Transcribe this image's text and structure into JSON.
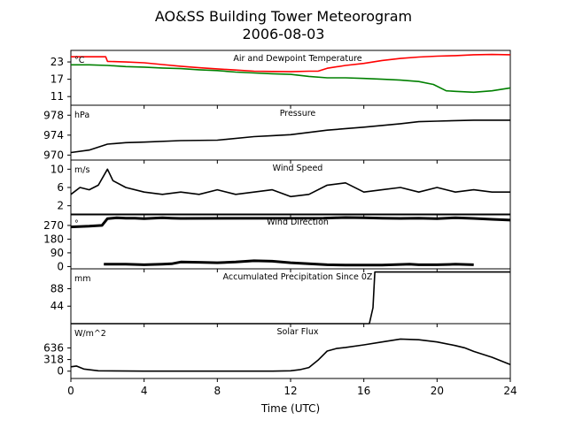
{
  "chart_data": {
    "type": "line",
    "title": "AO&SS Building Tower Meteorogram",
    "subtitle": "2006-08-03",
    "xlabel": "Time (UTC)",
    "xlim": [
      0,
      24
    ],
    "xticks": [
      0,
      4,
      8,
      12,
      16,
      20,
      24
    ],
    "colors": {
      "temperature": "#ff0000",
      "dewpoint": "#008000",
      "default": "#000000"
    },
    "panels": [
      {
        "id": "temperature",
        "title": "Air and Dewpoint Temperature",
        "unit": "°C",
        "ylim": [
          8,
          27
        ],
        "yticks": [
          11,
          17,
          23
        ],
        "series": [
          {
            "color": "#ff0000",
            "x": [
              0,
              1.9,
              2.0,
              3,
              4,
              5,
              6,
              7,
              8,
              9,
              10,
              11,
              12,
              13,
              13.5,
              14,
              15,
              16,
              17,
              18,
              19,
              20,
              21,
              22,
              23,
              24
            ],
            "y": [
              24.8,
              24.8,
              23.2,
              23.0,
              22.7,
              22.1,
              21.5,
              21.0,
              20.6,
              20.2,
              19.8,
              19.7,
              19.6,
              19.8,
              19.8,
              20.8,
              21.8,
              22.5,
              23.5,
              24.2,
              24.7,
              25.0,
              25.2,
              25.5,
              25.6,
              25.5
            ]
          },
          {
            "color": "#008000",
            "x": [
              0,
              1,
              2,
              3,
              4,
              5,
              6,
              7,
              8,
              9,
              10,
              11,
              12,
              13,
              14,
              15,
              16,
              17,
              18,
              19,
              19.8,
              20.5,
              21,
              22,
              23,
              24
            ],
            "y": [
              22.0,
              22.0,
              21.8,
              21.4,
              21.2,
              20.9,
              20.7,
              20.3,
              20.0,
              19.5,
              19.2,
              18.9,
              18.7,
              18.0,
              17.5,
              17.5,
              17.3,
              17.0,
              16.7,
              16.2,
              15.2,
              13.0,
              12.8,
              12.5,
              13.0,
              14.0
            ]
          }
        ]
      },
      {
        "id": "pressure",
        "title": "Pressure",
        "unit": "hPa",
        "ylim": [
          969,
          980
        ],
        "yticks": [
          970,
          974,
          978
        ],
        "series": [
          {
            "color": "#000000",
            "x": [
              0,
              1,
              2,
              3,
              4,
              6,
              8,
              10,
              11,
              12,
              14,
              16,
              18,
              19,
              20,
              22,
              24
            ],
            "y": [
              970.5,
              971.0,
              972.2,
              972.5,
              972.6,
              972.9,
              973.0,
              973.7,
              973.9,
              974.1,
              975.0,
              975.6,
              976.3,
              976.7,
              976.8,
              977.0,
              977.0
            ]
          }
        ]
      },
      {
        "id": "wind_speed",
        "title": "Wind Speed",
        "unit": "m/s",
        "ylim": [
          0,
          12
        ],
        "yticks": [
          2,
          6,
          10
        ],
        "series": [
          {
            "color": "#000000",
            "x": [
              0,
              0.5,
              1,
              1.5,
              2,
              2.3,
              3,
              4,
              5,
              6,
              7,
              8,
              9,
              10,
              11,
              12,
              13,
              14,
              15,
              16,
              17,
              18,
              19,
              20,
              21,
              22,
              23,
              24
            ],
            "y": [
              4.5,
              6.0,
              5.5,
              6.5,
              10.0,
              7.5,
              6.0,
              5.0,
              4.5,
              5.0,
              4.5,
              5.5,
              4.5,
              5.0,
              5.5,
              4.0,
              4.5,
              6.5,
              7.0,
              5.0,
              5.5,
              6.0,
              5.0,
              6.0,
              5.0,
              5.5,
              5.0,
              5.0
            ]
          }
        ]
      },
      {
        "id": "wind_direction",
        "title": "Wind Direction",
        "unit": "°",
        "ylim": [
          -15,
          345
        ],
        "yticks": [
          0,
          90,
          180,
          270
        ],
        "series": [
          {
            "color": "#000000",
            "x": [
              0,
              1,
              1.7,
              2.0,
              2.5,
              3,
              3.5,
              4,
              4.5,
              5,
              5.5,
              6.0,
              13.8,
              14.5,
              15,
              16,
              17,
              18,
              19,
              20,
              21,
              22,
              23,
              24
            ],
            "y": [
              260,
              265,
              270,
              315,
              320,
              318,
              317,
              315,
              318,
              320,
              318,
              316,
              318,
              320,
              322,
              320,
              318,
              316,
              318,
              315,
              320,
              316,
              310,
              305
            ]
          },
          {
            "color": "#000000",
            "x": [
              1.8,
              2.5,
              3,
              4,
              5,
              5.5,
              6,
              7,
              8,
              9,
              10,
              11,
              12,
              13,
              14,
              15,
              16.3,
              17,
              18.5,
              19,
              20,
              21,
              22
            ],
            "y": [
              15,
              15,
              15,
              12,
              15,
              18,
              30,
              28,
              25,
              30,
              38,
              35,
              25,
              18,
              12,
              10,
              10,
              10,
              15,
              12,
              12,
              15,
              12
            ]
          }
        ]
      },
      {
        "id": "precipitation",
        "title": "Accumulated Precipitation Since 0Z",
        "unit": "mm",
        "ylim": [
          0,
          138
        ],
        "yticks": [
          44,
          88
        ],
        "series": [
          {
            "color": "#000000",
            "x": [
              0,
              16.3,
              16.5,
              16.6,
              24
            ],
            "y": [
              0,
              0,
              40,
              130,
              130
            ]
          }
        ]
      },
      {
        "id": "solar_flux",
        "title": "Solar Flux",
        "unit": "W/m^2",
        "ylim": [
          -200,
          1300
        ],
        "yticks": [
          0,
          318,
          636
        ],
        "series": [
          {
            "color": "#000000",
            "x": [
              0,
              0.3,
              0.7,
              1.5,
              4,
              8,
              11,
              12,
              12.5,
              13,
              13.5,
              14,
              14.5,
              15,
              16,
              17,
              18,
              19,
              20,
              21,
              21.5,
              22,
              23,
              24
            ],
            "y": [
              120,
              140,
              60,
              10,
              0,
              0,
              0,
              10,
              40,
              100,
              300,
              550,
              620,
              650,
              720,
              800,
              880,
              860,
              800,
              700,
              640,
              540,
              380,
              180
            ]
          }
        ]
      }
    ]
  }
}
